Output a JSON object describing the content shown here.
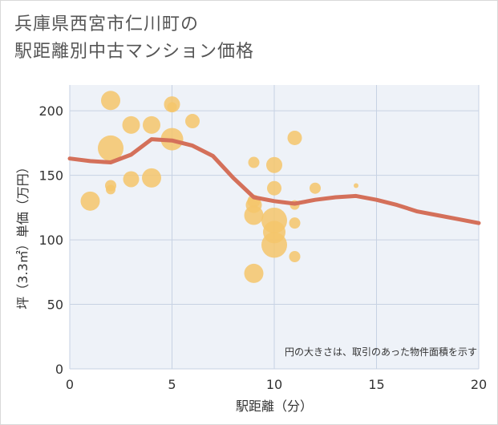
{
  "title_line1": "兵庫県西宮市仁川町の",
  "title_line2": "駅距離別中古マンション価格",
  "colors": {
    "bubble": "#f5c56b",
    "line": "#d4705a",
    "plot_bg": "#eef2f8",
    "grid": "#c7d2e3"
  },
  "chart_data": {
    "type": "scatter",
    "xlabel": "駅距離（分）",
    "ylabel": "坪（3.3㎡）単価（万円）",
    "xlim": [
      0,
      20
    ],
    "ylim": [
      0,
      220
    ],
    "xticks": [
      0,
      5,
      10,
      15,
      20
    ],
    "yticks": [
      0,
      50,
      100,
      150,
      200
    ],
    "note": "円の大きさは、取引のあった物件面積を示す",
    "bubbles": [
      {
        "x": 1,
        "y": 130,
        "size": 12
      },
      {
        "x": 2,
        "y": 208,
        "size": 12
      },
      {
        "x": 2,
        "y": 171,
        "size": 16
      },
      {
        "x": 2,
        "y": 142,
        "size": 7
      },
      {
        "x": 2,
        "y": 139,
        "size": 6
      },
      {
        "x": 3,
        "y": 189,
        "size": 11
      },
      {
        "x": 3,
        "y": 147,
        "size": 10
      },
      {
        "x": 4,
        "y": 189,
        "size": 11
      },
      {
        "x": 4,
        "y": 148,
        "size": 12
      },
      {
        "x": 5,
        "y": 205,
        "size": 10
      },
      {
        "x": 5,
        "y": 203,
        "size": 6
      },
      {
        "x": 5,
        "y": 178,
        "size": 14
      },
      {
        "x": 6,
        "y": 192,
        "size": 9
      },
      {
        "x": 9,
        "y": 160,
        "size": 7
      },
      {
        "x": 9,
        "y": 130,
        "size": 8
      },
      {
        "x": 9,
        "y": 127,
        "size": 10
      },
      {
        "x": 9,
        "y": 119,
        "size": 12
      },
      {
        "x": 9,
        "y": 74,
        "size": 12
      },
      {
        "x": 10,
        "y": 158,
        "size": 10
      },
      {
        "x": 10,
        "y": 140,
        "size": 9
      },
      {
        "x": 10,
        "y": 115,
        "size": 16
      },
      {
        "x": 10,
        "y": 106,
        "size": 14
      },
      {
        "x": 10,
        "y": 96,
        "size": 16
      },
      {
        "x": 11,
        "y": 179,
        "size": 9
      },
      {
        "x": 11,
        "y": 127,
        "size": 6
      },
      {
        "x": 11,
        "y": 113,
        "size": 7
      },
      {
        "x": 11,
        "y": 87,
        "size": 7
      },
      {
        "x": 12,
        "y": 140,
        "size": 7
      },
      {
        "x": 14,
        "y": 142,
        "size": 3
      }
    ],
    "trend": {
      "x": [
        0,
        1,
        2,
        3,
        4,
        5,
        6,
        7,
        8,
        9,
        10,
        11,
        12,
        13,
        14,
        15,
        16,
        17,
        18,
        19,
        20
      ],
      "y": [
        163,
        161,
        160,
        166,
        178,
        177,
        173,
        165,
        148,
        133,
        130,
        128,
        131,
        133,
        134,
        131,
        127,
        122,
        119,
        116,
        113
      ]
    }
  }
}
